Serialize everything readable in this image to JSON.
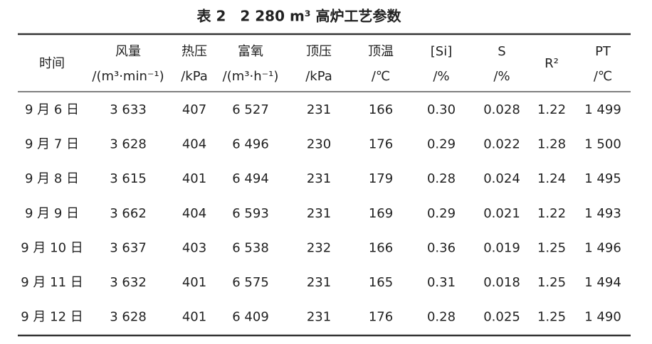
{
  "title": "表 2　2 280 m³ 高炉工艺参数",
  "table": {
    "columns": [
      {
        "name": "时间"
      },
      {
        "name": "风量",
        "unit": "/(m³·min⁻¹)"
      },
      {
        "name": "热压",
        "unit": "/kPa"
      },
      {
        "name": "富氧",
        "unit": "/(m³·h⁻¹)"
      },
      {
        "name": "顶压",
        "unit": "/kPa"
      },
      {
        "name": "顶温",
        "unit": "/℃"
      },
      {
        "name": "[Si]",
        "unit": "/%"
      },
      {
        "name": "S",
        "unit": "/%"
      },
      {
        "name": "R²"
      },
      {
        "name": "PT",
        "unit": "/℃"
      }
    ],
    "rows": [
      [
        "9 月 6 日",
        "3 633",
        "407",
        "6 527",
        "231",
        "166",
        "0.30",
        "0.028",
        "1.22",
        "1 499"
      ],
      [
        "9 月 7 日",
        "3 628",
        "404",
        "6 496",
        "230",
        "176",
        "0.29",
        "0.022",
        "1.28",
        "1 500"
      ],
      [
        "9 月 8 日",
        "3 615",
        "401",
        "6 494",
        "231",
        "179",
        "0.28",
        "0.024",
        "1.24",
        "1 495"
      ],
      [
        "9 月 9 日",
        "3 662",
        "404",
        "6 593",
        "231",
        "169",
        "0.29",
        "0.021",
        "1.22",
        "1 493"
      ],
      [
        "9 月 10 日",
        "3 637",
        "403",
        "6 538",
        "232",
        "166",
        "0.36",
        "0.019",
        "1.25",
        "1 496"
      ],
      [
        "9 月 11 日",
        "3 632",
        "401",
        "6 575",
        "231",
        "165",
        "0.31",
        "0.018",
        "1.25",
        "1 494"
      ],
      [
        "9 月 12 日",
        "3 628",
        "401",
        "6 409",
        "231",
        "176",
        "0.28",
        "0.025",
        "1.25",
        "1 490"
      ]
    ]
  }
}
